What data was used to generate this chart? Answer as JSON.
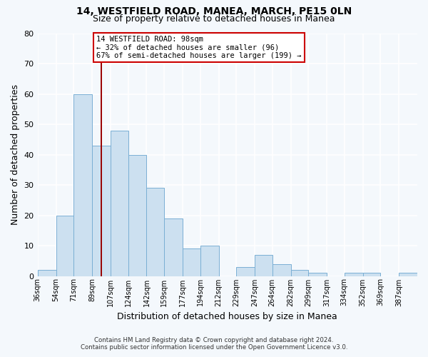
{
  "title1": "14, WESTFIELD ROAD, MANEA, MARCH, PE15 0LN",
  "title2": "Size of property relative to detached houses in Manea",
  "xlabel": "Distribution of detached houses by size in Manea",
  "ylabel": "Number of detached properties",
  "bar_color": "#cce0f0",
  "bar_edge_color": "#7aafd4",
  "background_color": "#f4f8fc",
  "plot_bg_color": "#f4f8fc",
  "bin_labels": [
    "36sqm",
    "54sqm",
    "71sqm",
    "89sqm",
    "107sqm",
    "124sqm",
    "142sqm",
    "159sqm",
    "177sqm",
    "194sqm",
    "212sqm",
    "229sqm",
    "247sqm",
    "264sqm",
    "282sqm",
    "299sqm",
    "317sqm",
    "334sqm",
    "352sqm",
    "369sqm",
    "387sqm"
  ],
  "bin_edges": [
    36,
    54,
    71,
    89,
    107,
    124,
    142,
    159,
    177,
    194,
    212,
    229,
    247,
    264,
    282,
    299,
    317,
    334,
    352,
    369,
    387
  ],
  "counts": [
    2,
    20,
    60,
    43,
    48,
    40,
    29,
    19,
    9,
    10,
    0,
    3,
    7,
    4,
    2,
    1,
    0,
    1,
    1,
    0,
    1
  ],
  "ylim": [
    0,
    80
  ],
  "yticks": [
    0,
    10,
    20,
    30,
    40,
    50,
    60,
    70,
    80
  ],
  "property_value": 98,
  "vline_color": "#990000",
  "annotation_line1": "14 WESTFIELD ROAD: 98sqm",
  "annotation_line2": "← 32% of detached houses are smaller (96)",
  "annotation_line3": "67% of semi-detached houses are larger (199) →",
  "annotation_box_facecolor": "#ffffff",
  "annotation_box_edgecolor": "#cc0000",
  "footer1": "Contains HM Land Registry data © Crown copyright and database right 2024.",
  "footer2": "Contains public sector information licensed under the Open Government Licence v3.0."
}
